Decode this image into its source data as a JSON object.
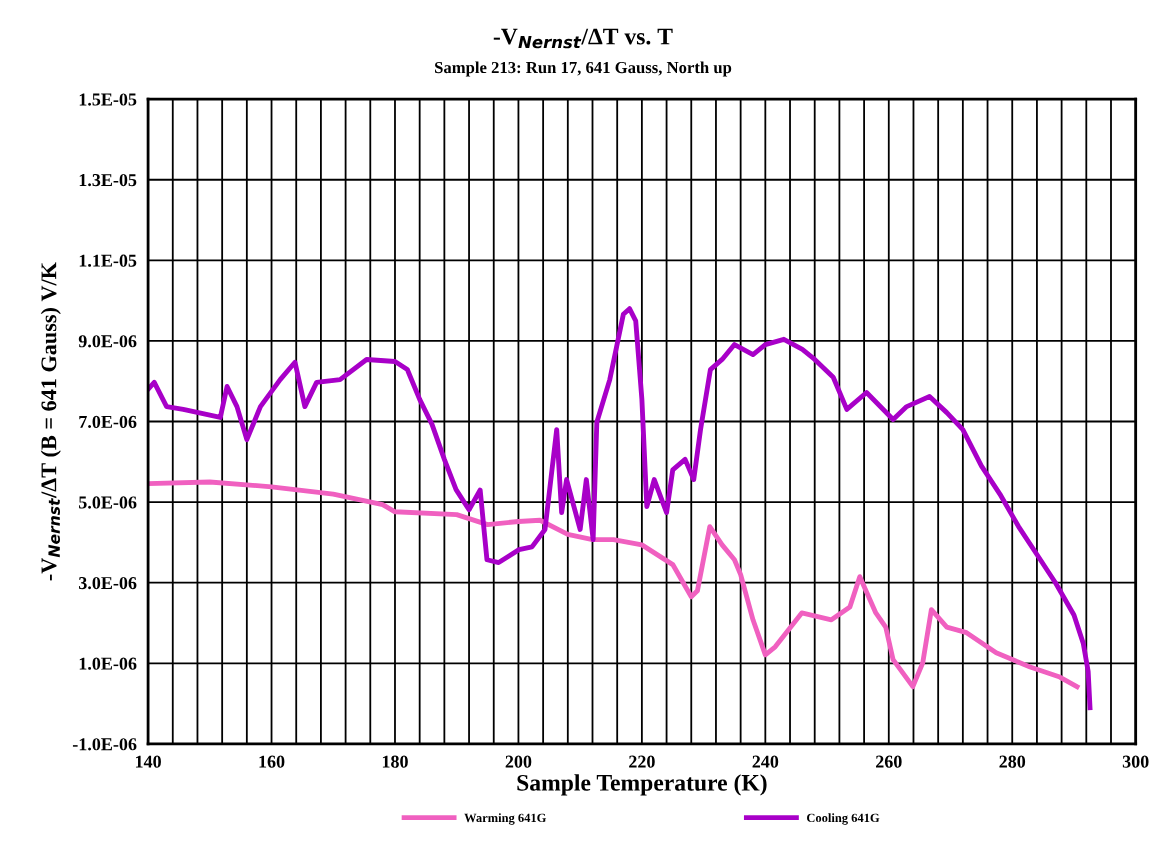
{
  "chart_data": {
    "type": "line",
    "title": "-V$_{Nernst}$/ΔT vs. T",
    "subtitle": "Sample 213: Run 17, 641 Gauss, North up",
    "xlabel": "Sample Temperature (K)",
    "ylabel": "-V$_{Nernst}$/ΔT (B = 641 Gauss) V/K",
    "xlim": [
      140,
      300
    ],
    "ylim": [
      -1e-06,
      1.5e-05
    ],
    "xticks": [
      140,
      {
        "value": 144,
        "label": null
      },
      {
        "value": 148,
        "label": null
      },
      {
        "value": 152,
        "label": null
      },
      {
        "value": 156,
        "label": null
      },
      160,
      {
        "value": 164,
        "label": null
      },
      {
        "value": 168,
        "label": null
      },
      {
        "value": 172,
        "label": null
      },
      {
        "value": 176,
        "label": null
      },
      180,
      {
        "value": 184,
        "label": null
      },
      {
        "value": 188,
        "label": null
      },
      {
        "value": 192,
        "label": null
      },
      {
        "value": 196,
        "label": null
      },
      200,
      {
        "value": 204,
        "label": null
      },
      {
        "value": 208,
        "label": null
      },
      {
        "value": 212,
        "label": null
      },
      {
        "value": 216,
        "label": null
      },
      220,
      {
        "value": 224,
        "label": null
      },
      {
        "value": 228,
        "label": null
      },
      {
        "value": 232,
        "label": null
      },
      {
        "value": 236,
        "label": null
      },
      240,
      {
        "value": 244,
        "label": null
      },
      {
        "value": 248,
        "label": null
      },
      {
        "value": 252,
        "label": null
      },
      {
        "value": 256,
        "label": null
      },
      260,
      {
        "value": 264,
        "label": null
      },
      {
        "value": 268,
        "label": null
      },
      {
        "value": 272,
        "label": null
      },
      {
        "value": 276,
        "label": null
      },
      280,
      {
        "value": 284,
        "label": null
      },
      {
        "value": 288,
        "label": null
      },
      {
        "value": 292,
        "label": null
      },
      {
        "value": 296,
        "label": null
      },
      300
    ],
    "yticks": [
      {
        "value": -1e-06,
        "label": "-1.0E-06"
      },
      {
        "value": 1e-06,
        "label": "1.0E-06"
      },
      {
        "value": 3e-06,
        "label": "3.0E-06"
      },
      {
        "value": 5e-06,
        "label": "5.0E-06"
      },
      {
        "value": 7e-06,
        "label": "7.0E-06"
      },
      {
        "value": 9e-06,
        "label": "9.0E-06"
      },
      {
        "value": 1.1e-05,
        "label": "1.1E-05"
      },
      {
        "value": 1.3e-05,
        "label": "1.3E-05"
      },
      {
        "value": 1.5e-05,
        "label": "1.5E-05"
      }
    ],
    "grid": true,
    "legend": "bottom",
    "marker": "none",
    "line_style": "solid",
    "series": [
      {
        "name": "Warming 641G",
        "color": "#f060c0",
        "x": [
          140,
          150,
          160,
          170,
          178,
          180,
          190,
          195,
          200,
          203.5,
          208,
          212,
          215.4,
          220,
          225,
          228,
          229,
          231,
          233,
          235,
          236,
          238,
          240,
          241.6,
          245.9,
          250.7,
          253.7,
          255.3,
          257.9,
          259.5,
          260.7,
          263.9,
          265.5,
          266.9,
          269.4,
          272.6,
          277.4,
          282.9,
          287.7,
          290.5
        ],
        "values": [
          5.46e-06,
          5.5e-06,
          5.38e-06,
          5.2e-06,
          4.94e-06,
          4.76e-06,
          4.69e-06,
          4.44e-06,
          4.52e-06,
          4.55e-06,
          4.2e-06,
          4.07e-06,
          4.07e-06,
          3.94e-06,
          3.45e-06,
          2.65e-06,
          2.8e-06,
          4.39e-06,
          3.94e-06,
          3.57e-06,
          3.2e-06,
          2.08e-06,
          1.21e-06,
          1.41e-06,
          2.25e-06,
          2.08e-06,
          2.4e-06,
          3.15e-06,
          2.25e-06,
          1.9e-06,
          1.09e-06,
          4.2e-07,
          1.01e-06,
          2.33e-06,
          1.9e-06,
          1.76e-06,
          1.26e-06,
          9.1e-07,
          6.6e-07,
          4.2e-07
        ]
      },
      {
        "name": "Cooling 641G",
        "color": "#a800c8",
        "x": [
          140,
          141,
          143,
          145.7,
          151.7,
          152.8,
          154.4,
          156,
          158.2,
          161.4,
          163.8,
          165.4,
          167.3,
          171.1,
          175.4,
          180,
          182,
          184,
          186,
          188,
          189.9,
          192,
          193.8,
          194.9,
          196.8,
          200.1,
          202.2,
          204.3,
          206.2,
          207,
          207.8,
          210,
          211,
          212.1,
          212.7,
          214.8,
          217,
          218,
          219,
          220,
          220.8,
          222,
          224,
          225,
          227,
          228.4,
          229.5,
          231.1,
          233,
          235,
          238,
          240,
          243,
          246,
          248,
          251,
          253.2,
          256.4,
          260.7,
          262.9,
          266.6,
          269.4,
          272,
          275,
          278,
          281,
          284,
          287,
          290,
          291.5,
          292.3,
          292.6
        ],
        "values": [
          7.8e-06,
          7.97e-06,
          7.37e-06,
          7.3e-06,
          7.1e-06,
          7.87e-06,
          7.37e-06,
          6.55e-06,
          7.37e-06,
          8.04e-06,
          8.47e-06,
          7.37e-06,
          7.97e-06,
          8.04e-06,
          8.54e-06,
          8.49e-06,
          8.29e-06,
          7.55e-06,
          6.93e-06,
          6.06e-06,
          5.31e-06,
          4.81e-06,
          5.3e-06,
          3.57e-06,
          3.5e-06,
          3.82e-06,
          3.89e-06,
          4.32e-06,
          6.8e-06,
          4.74e-06,
          5.56e-06,
          4.32e-06,
          5.56e-06,
          4.07e-06,
          6.98e-06,
          8.04e-06,
          9.66e-06,
          9.8e-06,
          9.5e-06,
          7.55e-06,
          4.89e-06,
          5.56e-06,
          4.74e-06,
          5.8e-06,
          6.06e-06,
          5.56e-06,
          6.8e-06,
          8.29e-06,
          8.54e-06,
          8.91e-06,
          8.66e-06,
          8.91e-06,
          9.04e-06,
          8.79e-06,
          8.54e-06,
          8.1e-06,
          7.3e-06,
          7.72e-06,
          7.05e-06,
          7.37e-06,
          7.62e-06,
          7.22e-06,
          6.8e-06,
          5.9e-06,
          5.2e-06,
          4.4e-06,
          3.7e-06,
          3e-06,
          2.2e-06,
          1.5e-06,
          8e-07,
          -1e-07
        ]
      }
    ]
  }
}
